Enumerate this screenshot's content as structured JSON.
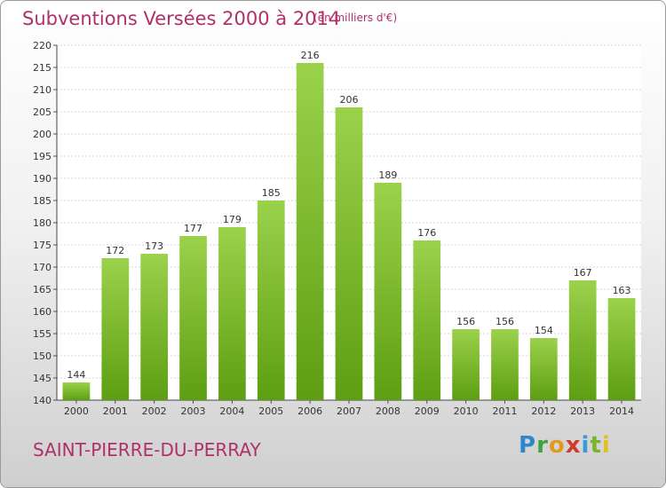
{
  "header": {
    "title": "Subventions Versées 2000 à 2014",
    "subtitle": "(en milliers d'€)"
  },
  "footer": {
    "city": "SAINT-PIERRE-DU-PERRAY",
    "logo": "Proxiti"
  },
  "colors": {
    "bar_top": "#9bd24b",
    "bar_bottom": "#5d9e12",
    "title": "#b0306a"
  },
  "chart_data": {
    "type": "bar",
    "title": "Subventions Versées 2000 à 2014",
    "subtitle": "(en milliers d'€)",
    "xlabel": "",
    "ylabel": "",
    "categories": [
      "2000",
      "2001",
      "2002",
      "2003",
      "2004",
      "2005",
      "2006",
      "2007",
      "2008",
      "2009",
      "2010",
      "2011",
      "2012",
      "2013",
      "2014"
    ],
    "values": [
      144,
      172,
      173,
      177,
      179,
      185,
      216,
      206,
      189,
      176,
      156,
      156,
      154,
      167,
      163
    ],
    "ylim": [
      140,
      220
    ],
    "yticks": [
      140,
      145,
      150,
      155,
      160,
      165,
      170,
      175,
      180,
      185,
      190,
      195,
      200,
      205,
      210,
      215,
      220
    ],
    "grid": true,
    "data_labels": true
  }
}
